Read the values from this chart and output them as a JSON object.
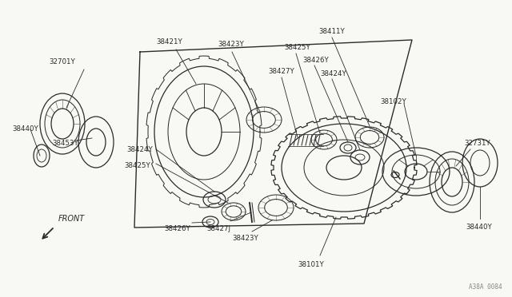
{
  "bg_color": "#f8f8f4",
  "line_color": "#2a2a2a",
  "watermark": "A38A 0084",
  "figsize": [
    6.4,
    3.72
  ],
  "dpi": 100,
  "xlim": [
    0,
    640
  ],
  "ylim": [
    0,
    372
  ]
}
